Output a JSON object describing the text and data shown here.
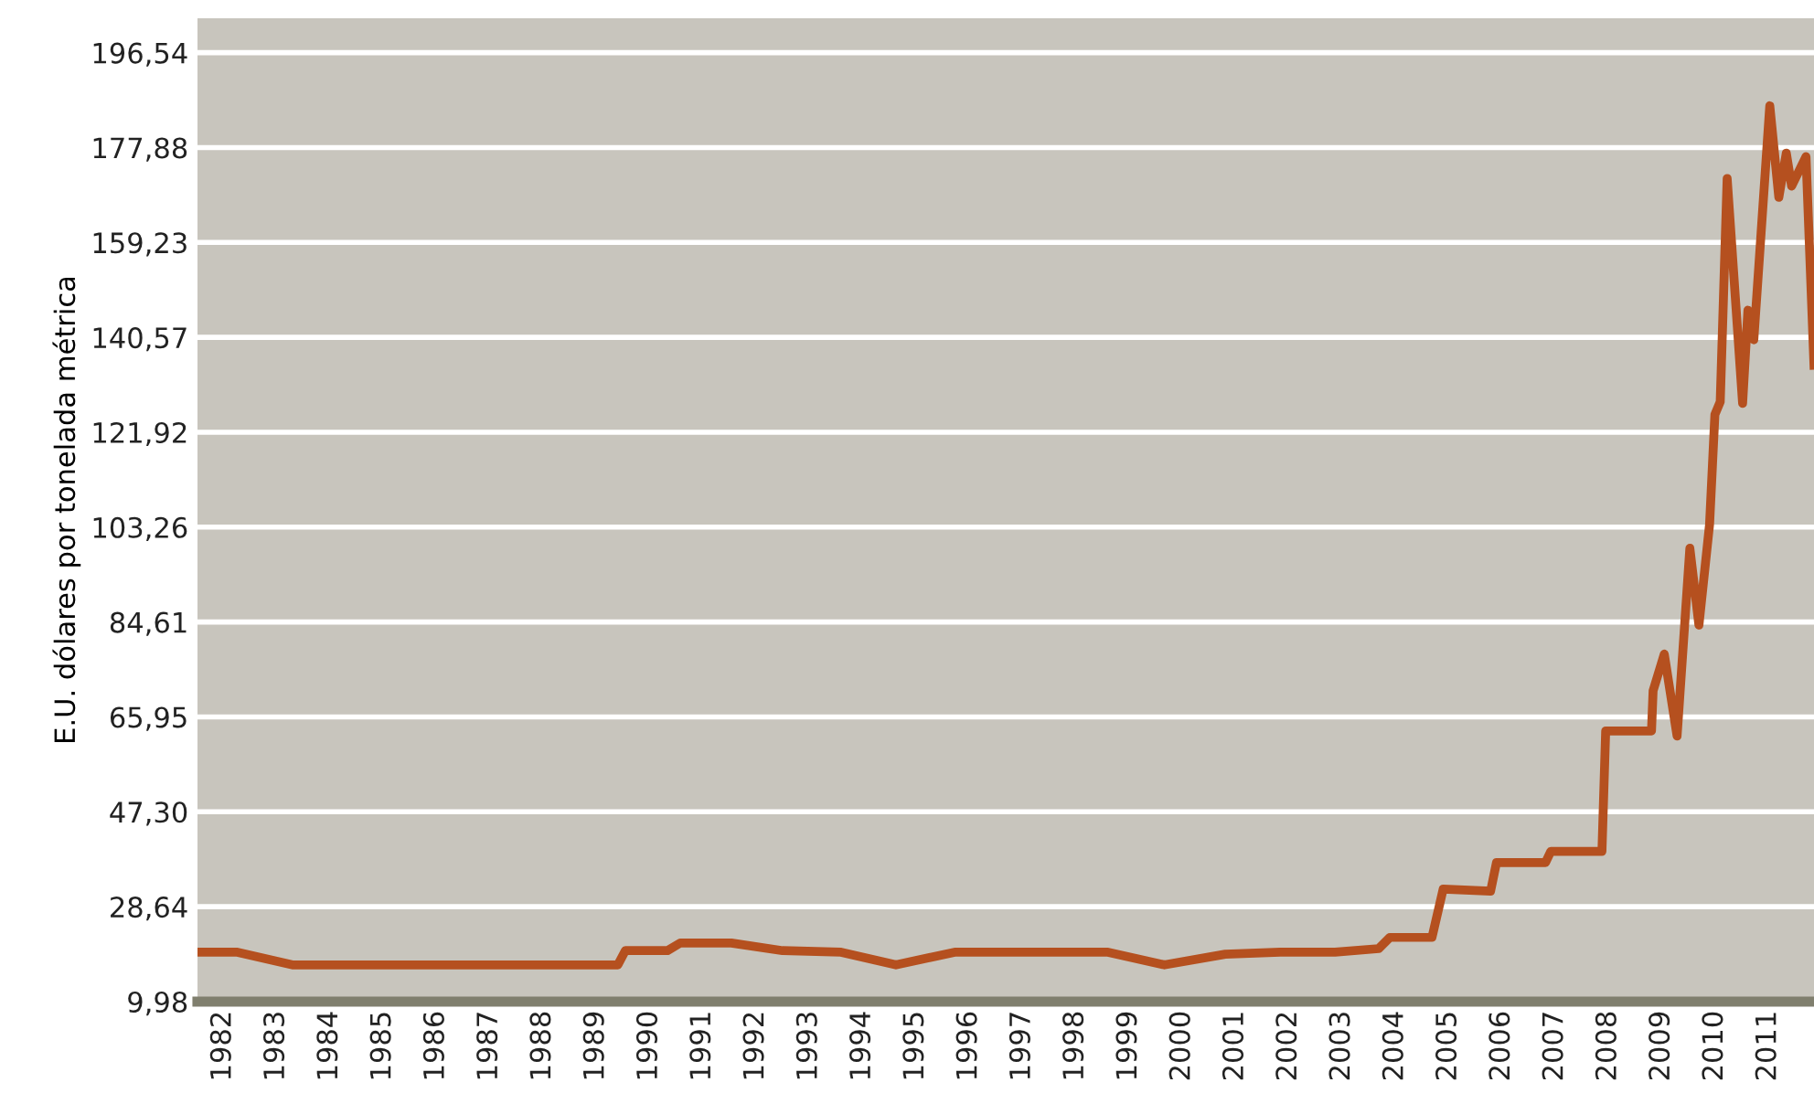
{
  "chart_data": {
    "type": "line",
    "ylabel": "E.U. dólares por tonelada métrica",
    "x": [
      1981.52,
      1982.27,
      1983.3,
      1989.41,
      1989.55,
      1990.34,
      1990.58,
      1991.54,
      1992.5,
      1993.6,
      1994.63,
      1995.73,
      1998.61,
      1999.67,
      2000.81,
      2001.84,
      2002.87,
      2003.69,
      2003.9,
      2004.69,
      2004.9,
      2005.79,
      2005.9,
      2006.82,
      2006.92,
      2007.88,
      2007.95,
      2008.81,
      2008.84,
      2009.05,
      2009.29,
      2009.53,
      2009.7,
      2009.9,
      2010.0,
      2010.1,
      2010.23,
      2010.52,
      2010.62,
      2010.73,
      2011.03,
      2011.2,
      2011.34,
      2011.44,
      2011.71,
      2011.86
    ],
    "series": [
      {
        "color": "#b5501f",
        "values": [
          19.7,
          19.7,
          17.2,
          17.2,
          20.0,
          20.0,
          21.5,
          21.5,
          20.0,
          19.7,
          17.2,
          19.7,
          19.7,
          17.2,
          19.3,
          19.7,
          19.7,
          20.4,
          22.6,
          22.6,
          32.1,
          31.7,
          37.3,
          37.3,
          39.5,
          39.5,
          63.2,
          63.2,
          71.1,
          78.3,
          62.2,
          99.1,
          84.0,
          103.8,
          125.4,
          127.9,
          171.8,
          127.6,
          145.9,
          140.1,
          186.1,
          168.1,
          176.8,
          170.3,
          176.1,
          135.1
        ]
      }
    ],
    "xlim": [
      1981.52,
      2011.86
    ],
    "xticks": [
      {
        "value": 1982,
        "label": "1982"
      },
      {
        "value": 1983,
        "label": "1983"
      },
      {
        "value": 1984,
        "label": "1984"
      },
      {
        "value": 1985,
        "label": "1985"
      },
      {
        "value": 1986,
        "label": "1986"
      },
      {
        "value": 1987,
        "label": "1987"
      },
      {
        "value": 1988,
        "label": "1988"
      },
      {
        "value": 1989,
        "label": "1989"
      },
      {
        "value": 1990,
        "label": "1990"
      },
      {
        "value": 1991,
        "label": "1991"
      },
      {
        "value": 1992,
        "label": "1992"
      },
      {
        "value": 1993,
        "label": "1993"
      },
      {
        "value": 1994,
        "label": "1994"
      },
      {
        "value": 1995,
        "label": "1995"
      },
      {
        "value": 1996,
        "label": "1996"
      },
      {
        "value": 1997,
        "label": "1997"
      },
      {
        "value": 1998,
        "label": "1998"
      },
      {
        "value": 1999,
        "label": "1999"
      },
      {
        "value": 2000,
        "label": "2000"
      },
      {
        "value": 2001,
        "label": "2001"
      },
      {
        "value": 2002,
        "label": "2002"
      },
      {
        "value": 2003,
        "label": "2003"
      },
      {
        "value": 2004,
        "label": "2004"
      },
      {
        "value": 2005,
        "label": "2005"
      },
      {
        "value": 2006,
        "label": "2006"
      },
      {
        "value": 2007,
        "label": "2007"
      },
      {
        "value": 2008,
        "label": "2008"
      },
      {
        "value": 2009,
        "label": "2009"
      },
      {
        "value": 2010,
        "label": "2010"
      },
      {
        "value": 2011,
        "label": "2011"
      }
    ],
    "ylim": [
      9.98,
      203.3
    ],
    "yticks": [
      {
        "value": 9.98,
        "label": "9,98"
      },
      {
        "value": 28.64,
        "label": "28,64"
      },
      {
        "value": 47.3,
        "label": "47,30"
      },
      {
        "value": 65.95,
        "label": "65,95"
      },
      {
        "value": 84.61,
        "label": "84,61"
      },
      {
        "value": 103.26,
        "label": "103,26"
      },
      {
        "value": 121.92,
        "label": "121,92"
      },
      {
        "value": 140.57,
        "label": "140,57"
      },
      {
        "value": 159.23,
        "label": "159,23"
      },
      {
        "value": 177.88,
        "label": "177,88"
      },
      {
        "value": 196.54,
        "label": "196,54"
      }
    ],
    "grid": "y",
    "legend": false,
    "line_style": "solid",
    "marker": "none"
  }
}
